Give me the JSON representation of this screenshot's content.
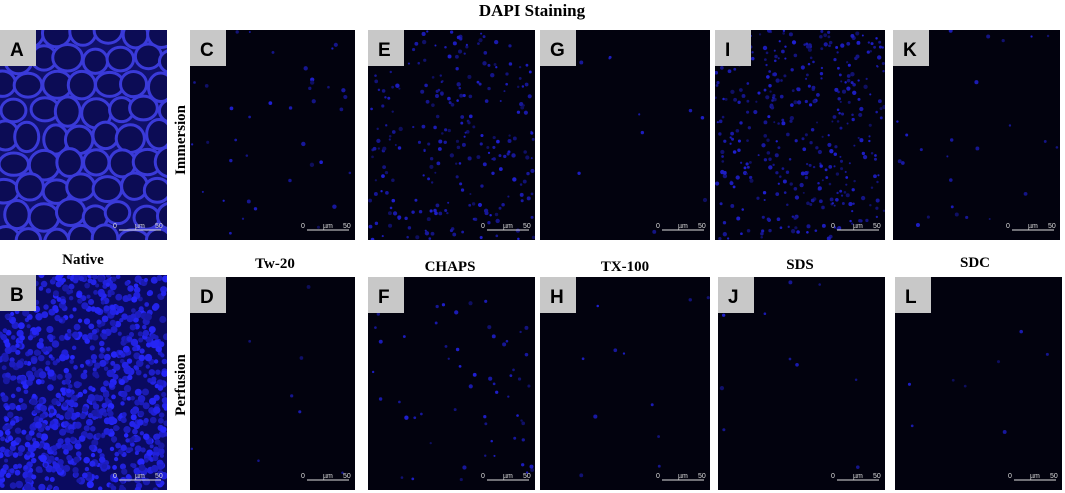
{
  "title": "DAPI Staining",
  "row_labels": [
    "Immersion",
    "Perfusion"
  ],
  "column_labels": [
    "Native",
    "Tw-20",
    "CHAPS",
    "TX-100",
    "SDS",
    "SDC"
  ],
  "panels": [
    {
      "label": "A"
    },
    {
      "label": "B"
    },
    {
      "label": "C"
    },
    {
      "label": "D"
    },
    {
      "label": "E"
    },
    {
      "label": "F"
    },
    {
      "label": "G"
    },
    {
      "label": "H"
    },
    {
      "label": "I"
    },
    {
      "label": "J"
    },
    {
      "label": "K"
    },
    {
      "label": "L"
    }
  ],
  "scale_bar": {
    "start": "0",
    "unit": "µm",
    "end": "50"
  }
}
